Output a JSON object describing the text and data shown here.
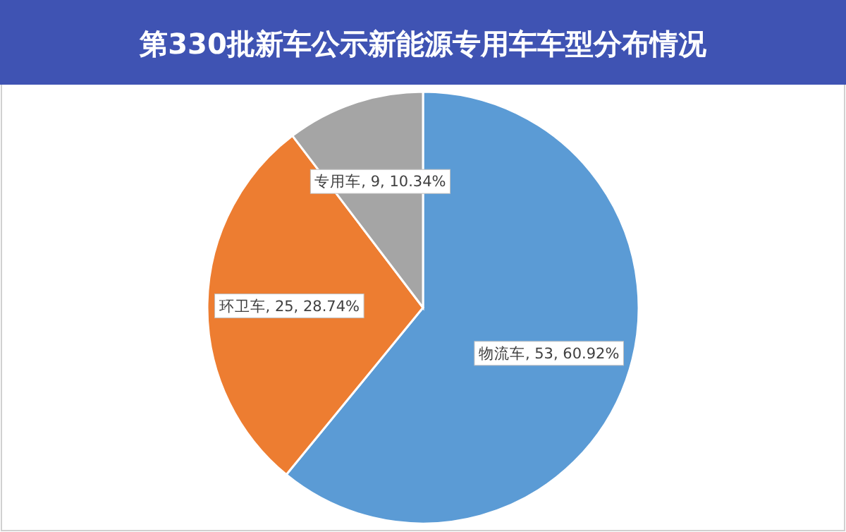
{
  "chart_data": {
    "type": "pie",
    "title": "第330批新车公示新能源专用车车型分布情况",
    "categories": [
      "物流车",
      "环卫车",
      "专用车"
    ],
    "values": [
      53,
      25,
      9
    ],
    "value_labels": [
      "53, 60.92%",
      "25, 28.74%",
      "9, 10.34%"
    ],
    "colors": [
      "#5b9bd5",
      "#ed7d31",
      "#a5a5a5"
    ]
  }
}
